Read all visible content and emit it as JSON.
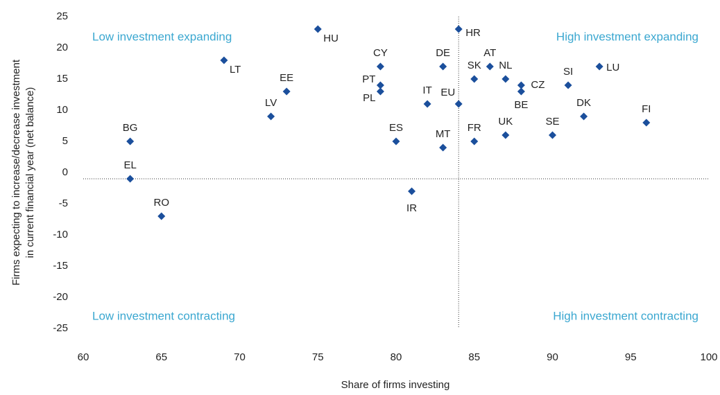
{
  "chart_data": {
    "type": "scatter",
    "xlabel": "Share of firms investing",
    "ylabel": [
      "Firms expecting to increase/decrease investment",
      "in current financial year (net balance)"
    ],
    "annotations": [
      "Low investment expanding",
      "High investment expanding",
      "Low investment contracting",
      "High investment contracting"
    ],
    "series": [
      {
        "color": "#1b4f9c",
        "labels": [
          "HU",
          "HR",
          "LT",
          "CY",
          "DE",
          "AT",
          "LU",
          "SK",
          "NL",
          "PT",
          "CZ",
          "SI",
          "EE",
          "PL",
          "BE",
          "IT",
          "EU",
          "LV",
          "DK",
          "FI",
          "BG",
          "ES",
          "FR",
          "UK",
          "SE",
          "MT",
          "EL",
          "IR",
          "RO"
        ],
        "x": [
          75,
          84,
          69,
          79,
          83,
          86,
          93,
          85,
          87,
          79,
          88,
          91,
          73,
          79,
          88,
          82,
          84,
          72,
          92,
          96,
          63,
          80,
          85,
          87,
          90,
          83,
          63,
          81,
          65
        ],
        "values": [
          23,
          23,
          18,
          17,
          17,
          17,
          17,
          15,
          15,
          14,
          14,
          14,
          13,
          13,
          13,
          11,
          11,
          9,
          9,
          8,
          5,
          5,
          5,
          6,
          6,
          4,
          -1,
          -3,
          -7
        ]
      }
    ],
    "reference_x": 84,
    "reference_y": -1,
    "xlim": [
      60,
      100
    ],
    "xticks": [
      60,
      65,
      70,
      75,
      80,
      85,
      90,
      95,
      100
    ],
    "ylim": [
      -25,
      25
    ],
    "yticks": [
      -25,
      -20,
      -15,
      -10,
      -5,
      0,
      5,
      10,
      15,
      20,
      25
    ],
    "annotation_color": "#3aa7d0"
  }
}
